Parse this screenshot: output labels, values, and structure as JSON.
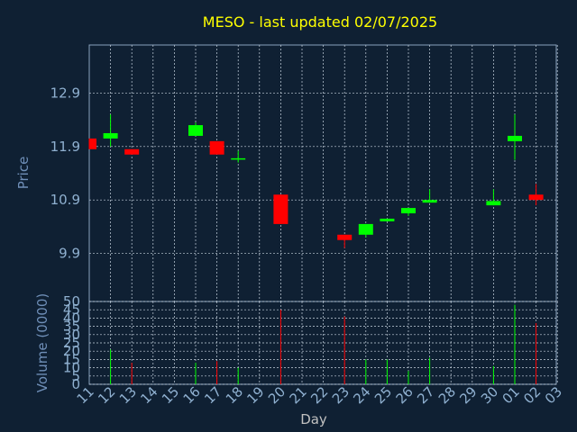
{
  "chart_data": {
    "type": "candlestick",
    "title": "MESO - last updated 02/07/2025",
    "price_panel": {
      "ylabel": "Price",
      "yticks": [
        "9.9",
        "10.9",
        "11.9",
        "12.9"
      ],
      "ylim": [
        9.0,
        13.8
      ]
    },
    "volume_panel": {
      "ylabel": "Volume (0000)",
      "yticks": [
        "0",
        "5",
        "10",
        "15",
        "20",
        "25",
        "30",
        "35",
        "40",
        "45",
        "50"
      ],
      "ylim": [
        0,
        50
      ]
    },
    "xlabel": "Day",
    "x_ticks": [
      "11",
      "12",
      "13",
      "14",
      "15",
      "16",
      "17",
      "18",
      "19",
      "20",
      "21",
      "22",
      "23",
      "24",
      "25",
      "26",
      "27",
      "28",
      "29",
      "30",
      "01",
      "02",
      "03"
    ],
    "candles": [
      {
        "day": "11",
        "open": 12.05,
        "close": 11.85,
        "high": 12.05,
        "low": 11.85,
        "volume": 0
      },
      {
        "day": "12",
        "open": 12.05,
        "close": 12.15,
        "high": 12.5,
        "low": 11.9,
        "volume": 21
      },
      {
        "day": "13",
        "open": 11.85,
        "close": 11.75,
        "high": 11.85,
        "low": 11.75,
        "volume": 13
      },
      {
        "day": "16",
        "open": 12.1,
        "close": 12.3,
        "high": 12.35,
        "low": 12.1,
        "volume": 13
      },
      {
        "day": "17",
        "open": 12.0,
        "close": 11.75,
        "high": 12.0,
        "low": 11.75,
        "volume": 14
      },
      {
        "day": "18",
        "open": 11.68,
        "close": 11.68,
        "high": 11.82,
        "low": 11.6,
        "volume": 10
      },
      {
        "day": "20",
        "open": 11.0,
        "close": 10.45,
        "high": 11.0,
        "low": 10.45,
        "volume": 45
      },
      {
        "day": "23",
        "open": 10.25,
        "close": 10.15,
        "high": 10.25,
        "low": 10.0,
        "volume": 41
      },
      {
        "day": "24",
        "open": 10.25,
        "close": 10.45,
        "high": 10.45,
        "low": 10.2,
        "volume": 15
      },
      {
        "day": "25",
        "open": 10.5,
        "close": 10.55,
        "high": 10.55,
        "low": 10.5,
        "volume": 15
      },
      {
        "day": "26",
        "open": 10.65,
        "close": 10.75,
        "high": 10.75,
        "low": 10.6,
        "volume": 8
      },
      {
        "day": "27",
        "open": 10.85,
        "close": 10.9,
        "high": 11.1,
        "low": 10.85,
        "volume": 16
      },
      {
        "day": "30",
        "open": 10.8,
        "close": 10.88,
        "high": 11.1,
        "low": 10.8,
        "volume": 11
      },
      {
        "day": "01",
        "open": 12.0,
        "close": 12.1,
        "high": 12.5,
        "low": 11.65,
        "volume": 48
      },
      {
        "day": "02",
        "open": 11.0,
        "close": 10.9,
        "high": 11.2,
        "low": 10.8,
        "volume": 37
      }
    ],
    "colors": {
      "up": "#00ff00",
      "down": "#ff0000",
      "background": "#0f2033",
      "grid": "#c8d4e0",
      "title": "#ffff00",
      "label": "#6f8fb8",
      "tick": "#8fb0d0"
    }
  }
}
